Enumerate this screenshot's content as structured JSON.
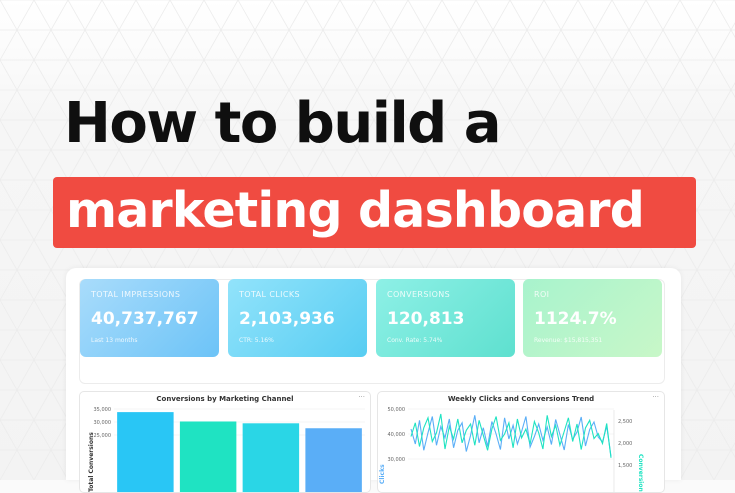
{
  "hero": {
    "line1": "How to build a",
    "line2": "marketing dashboard",
    "accent_color": "#f04b41"
  },
  "kpis": [
    {
      "label": "TOTAL IMPRESSIONS",
      "value": "40,737,767",
      "sub": "Last 13 months"
    },
    {
      "label": "TOTAL CLICKS",
      "value": "2,103,936",
      "sub": "CTR: 5.16%"
    },
    {
      "label": "CONVERSIONS",
      "value": "120,813",
      "sub": "Conv. Rate: 5.74%"
    },
    {
      "label": "ROI",
      "value": "1124.7%",
      "sub": "Revenue: $15,815,351"
    }
  ],
  "menu_icon": "more-dots-icon",
  "chart_data": [
    {
      "type": "bar",
      "title": "Conversions by Marketing Channel",
      "ylabel": "Total Conversions",
      "ylim": [
        0,
        35000
      ],
      "yticks": [
        "35,000",
        "30,000",
        "25,000"
      ],
      "values": [
        33800,
        30200,
        29500,
        27600
      ],
      "colors": [
        "#29c6f5",
        "#1fe3c2",
        "#2ad6e6",
        "#5aaef7"
      ]
    },
    {
      "type": "line",
      "title": "Weekly Clicks and Conversions Trend",
      "ylabel": "Clicks",
      "y2label": "Conversions",
      "ylim": [
        30000,
        50000
      ],
      "yticks": [
        "50,000",
        "40,000",
        "30,000"
      ],
      "y2ticks": [
        "2,500",
        "2,000",
        "1,500"
      ],
      "series": [
        {
          "color": "#5aaef7",
          "values": [
            42000,
            36000,
            45500,
            33500,
            40500,
            47000,
            35500,
            43000,
            38500,
            46000,
            34500,
            41500,
            44500,
            33000,
            39500,
            47500,
            36500,
            42500,
            35000,
            45000,
            40000,
            33800,
            46500,
            38000,
            43500,
            36000,
            41000,
            47000,
            34800,
            39000,
            44000,
            37500,
            42800,
            35800,
            45800,
            39800,
            33600,
            43800,
            37800,
            40800,
            46800,
            35200,
            41800,
            44800,
            38800,
            36800,
            43200,
            31000
          ]
        },
        {
          "color": "#1fe3c2",
          "values": [
            39000,
            44500,
            35000,
            42500,
            46500,
            37000,
            40500,
            48000,
            34000,
            43000,
            38000,
            46000,
            36500,
            41500,
            44000,
            35500,
            45500,
            39500,
            33500,
            42000,
            47000,
            37500,
            40000,
            44500,
            34500,
            46000,
            38500,
            42000,
            36000,
            45000,
            40500,
            34000,
            47500,
            39000,
            43500,
            35500,
            41000,
            46500,
            37000,
            44000,
            33800,
            42500,
            45500,
            38200,
            40200,
            36200,
            44200,
            30500
          ]
        }
      ]
    }
  ]
}
